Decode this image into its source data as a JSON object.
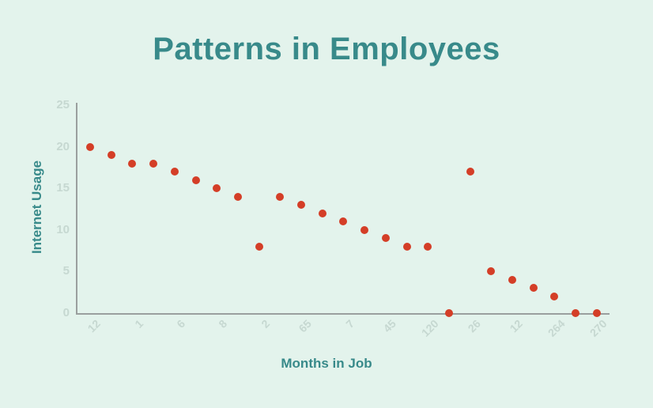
{
  "page": {
    "background_color": "#e3f3ec"
  },
  "chart_data": {
    "type": "scatter",
    "title": "Patterns in Employees",
    "xlabel": "Months in Job",
    "ylabel": "Internet Usage",
    "categories": [
      "12",
      "",
      "1",
      "",
      "6",
      "",
      "8",
      "",
      "2",
      "",
      "65",
      "",
      "7",
      "",
      "45",
      "",
      "120",
      "",
      "26",
      "",
      "12",
      "",
      "264",
      "",
      "270"
    ],
    "values": [
      20,
      19,
      18,
      18,
      17,
      16,
      15,
      14,
      8,
      14,
      13,
      12,
      11,
      10,
      9,
      8,
      8,
      0,
      17,
      5,
      4,
      3,
      2,
      0,
      0
    ],
    "ylim": [
      0,
      25
    ],
    "yticks": [
      0,
      5,
      10,
      15,
      20,
      25
    ],
    "grid": false,
    "legend": "none",
    "x_tick_labels_shown": "every other point",
    "colors": {
      "background": "#e3f3ec",
      "title_text": "#388a8a",
      "point": "#d43e27",
      "axis_line": "#9a9f9e",
      "tick_label": "#c6d8d1"
    }
  }
}
